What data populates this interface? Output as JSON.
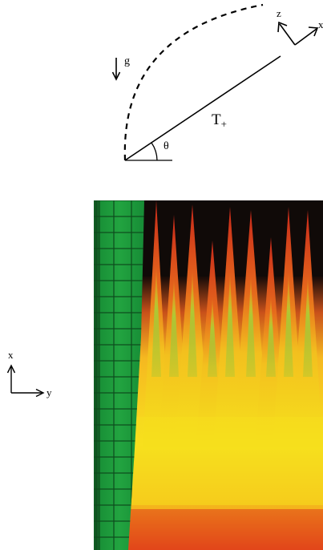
{
  "diagram": {
    "labels": {
      "gravity": "g",
      "top_axis_z": "z",
      "top_axis_x": "x",
      "temperature": "T",
      "temperature_subscript": "+",
      "angle": "θ",
      "bottom_axis_x": "x",
      "bottom_axis_y": "y"
    },
    "colors": {
      "background": "#ffffff",
      "ink": "#000000",
      "photo_dark": "#100a08",
      "wall_green": "#1e9a3c",
      "wall_grid": "#0d4a1c",
      "flame_red": "#d8321c",
      "flame_orange": "#f08a1c",
      "flame_yellow": "#f6e21c",
      "flame_green_tip": "#8cc63c"
    },
    "icons": {
      "gravity_arrow": "down-arrow-icon",
      "top_axes": "axis-triad-icon",
      "bottom_axes": "axis-triad-icon"
    }
  }
}
